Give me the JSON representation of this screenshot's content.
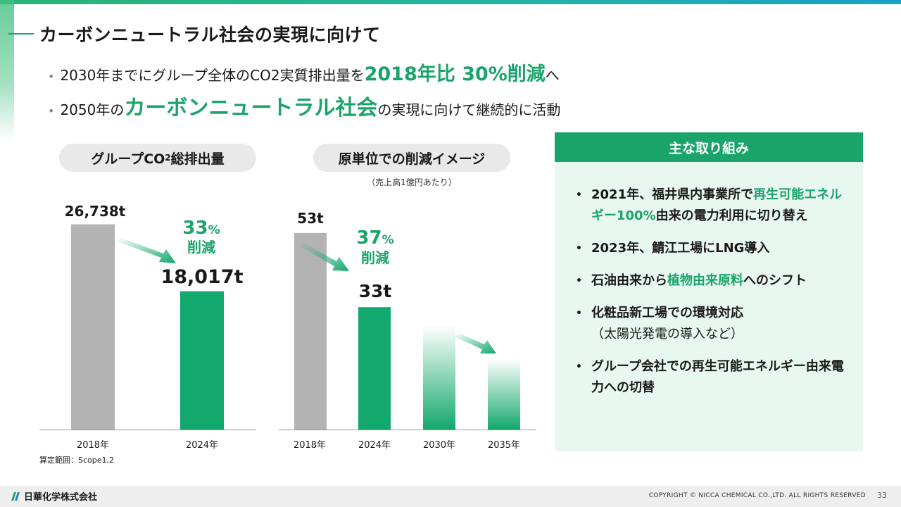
{
  "page": {
    "title": "カーボンニュートラル社会の実現に向けて",
    "bullets": [
      {
        "pre": "2030年までにグループ全体のCO2実質排出量を",
        "highlight": "2018年比 30%削減",
        "post": "へ"
      },
      {
        "pre": "2050年の",
        "highlight": "カーボンニュートラル社会",
        "post": "の実現に向けて継続的に活動"
      }
    ]
  },
  "chart_data": [
    {
      "type": "bar",
      "title_main": "グループCO",
      "title_sub": "2",
      "title_tail": "総排出量",
      "categories": [
        "2018年",
        "2024年"
      ],
      "values": [
        26738,
        18017
      ],
      "value_labels": [
        "26,738t",
        "18,017t"
      ],
      "reduction_value": "33",
      "reduction_unit": "%",
      "reduction_word": "削減",
      "ylim": [
        0,
        30000
      ],
      "colors": [
        "#b3b3b3",
        "#13a86d"
      ]
    },
    {
      "type": "bar",
      "title": "原単位での削減イメージ",
      "subtitle": "（売上高1億円あたり）",
      "categories": [
        "2018年",
        "2024年",
        "2030年",
        "2035年"
      ],
      "values": [
        53,
        33,
        28,
        19
      ],
      "value_labels": [
        "53t",
        "33t",
        "",
        ""
      ],
      "reduction_value": "37",
      "reduction_unit": "%",
      "reduction_word": "削減",
      "ylim": [
        0,
        60
      ],
      "colors": [
        "#b3b3b3",
        "#13a86d",
        "#13a86d",
        "#13a86d"
      ],
      "faded": [
        false,
        false,
        true,
        true
      ]
    }
  ],
  "scope_note": "算定範囲：Scope1,2",
  "panel": {
    "heading": "主な取り組み",
    "items": [
      {
        "pre": "2021年、福井県内事業所で",
        "highlight": "再生可能エネルギー100%",
        "post": "由来の電力利用に切り替え"
      },
      {
        "pre": "2023年、鯖江工場にLNG導入",
        "highlight": "",
        "post": ""
      },
      {
        "pre": "石油由来から",
        "highlight": "植物由来原料",
        "post": "へのシフト"
      },
      {
        "pre": "化粧品新工場での環境対応",
        "highlight": "",
        "post": "",
        "sub": "（太陽光発電の導入など）"
      },
      {
        "pre": "グループ会社での再生可能エネルギー由来電力への切替",
        "highlight": "",
        "post": ""
      }
    ]
  },
  "footer": {
    "company": "日華化学株式会社",
    "copyright": "COPYRIGHT © NICCA CHEMICAL CO.,LTD. ALL RIGHTS RESERVED",
    "page_number": "33"
  },
  "colors": {
    "accent": "#1aa46a",
    "gray_bar": "#b3b3b3",
    "green_bar": "#13a86d"
  }
}
